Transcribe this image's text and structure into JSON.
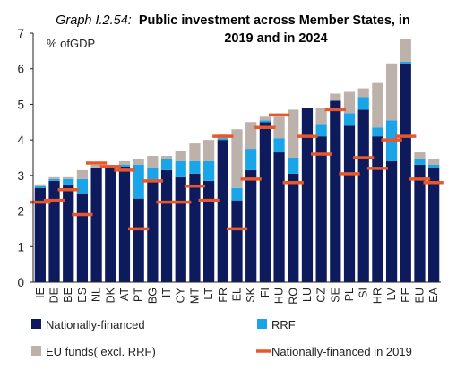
{
  "chart_data": {
    "type": "bar",
    "title_prefix": "Graph I.2.54:",
    "title_line1": "Public investment across Member States, in",
    "title_line2": "2019 and in 2024",
    "ylabel": "% ofGDP",
    "xlabel": "",
    "ylim": [
      0,
      7
    ],
    "yticks": [
      0,
      1,
      2,
      3,
      4,
      5,
      6,
      7
    ],
    "stacked": true,
    "categories": [
      "IE",
      "DE",
      "BE",
      "ES",
      "NL",
      "DK",
      "AT",
      "PT",
      "BG",
      "IT",
      "CY",
      "MT",
      "LT",
      "FR",
      "EL",
      "SK",
      "FI",
      "HU",
      "RO",
      "LU",
      "CZ",
      "SE",
      "PL",
      "SI",
      "HR",
      "LV",
      "EE",
      "EU",
      "EA"
    ],
    "series": [
      {
        "name": "Nationally-financed",
        "color": "#0d1a5c",
        "values": [
          2.65,
          2.85,
          2.75,
          2.5,
          3.2,
          3.25,
          3.25,
          2.35,
          2.85,
          3.15,
          2.95,
          3.05,
          2.85,
          4.0,
          2.3,
          3.15,
          4.5,
          3.65,
          3.05,
          4.9,
          4.1,
          5.1,
          4.4,
          4.85,
          4.1,
          3.4,
          6.15,
          3.3,
          3.2
        ]
      },
      {
        "name": "RRF",
        "color": "#1aa5e8",
        "values": [
          0.05,
          0.05,
          0.15,
          0.4,
          0.0,
          0.0,
          0.05,
          0.95,
          0.35,
          0.3,
          0.45,
          0.35,
          0.55,
          0.05,
          0.35,
          0.6,
          0.05,
          0.4,
          0.45,
          0.0,
          0.35,
          0.0,
          0.35,
          0.35,
          0.25,
          1.15,
          0.05,
          0.15,
          0.1
        ]
      },
      {
        "name": "EU funds( excl. RRF)",
        "color": "#bdb1ab",
        "values": [
          0.05,
          0.05,
          0.05,
          0.25,
          0.1,
          0.05,
          0.1,
          0.15,
          0.35,
          0.1,
          0.3,
          0.5,
          0.6,
          0.1,
          1.65,
          0.75,
          0.1,
          0.6,
          1.35,
          0.0,
          0.45,
          0.2,
          0.6,
          0.25,
          1.25,
          1.6,
          0.65,
          0.2,
          0.15
        ]
      }
    ],
    "markers": {
      "name": "Nationally-financed in 2019",
      "color": "#e8572a",
      "values": [
        2.25,
        2.3,
        2.6,
        1.9,
        3.35,
        3.25,
        3.15,
        1.5,
        2.85,
        2.25,
        2.25,
        2.7,
        2.3,
        4.1,
        1.5,
        2.9,
        4.35,
        4.7,
        2.8,
        4.1,
        3.6,
        4.85,
        3.05,
        3.5,
        3.2,
        4.0,
        4.1,
        2.9,
        2.8
      ]
    },
    "legend_position": "bottom",
    "grid": false
  }
}
